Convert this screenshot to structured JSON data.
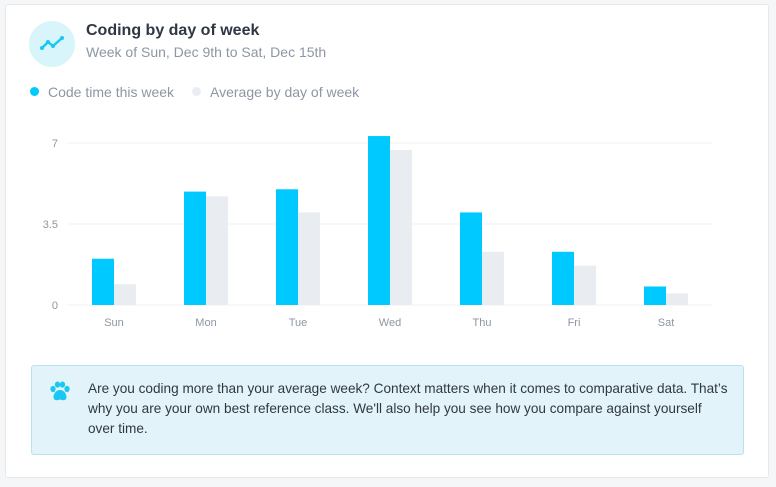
{
  "header": {
    "title": "Coding by day of week",
    "subtitle": "Week of Sun, Dec 9th to Sat, Dec 15th"
  },
  "legend": [
    {
      "label": "Code time this week",
      "color": "#00c9ff"
    },
    {
      "label": "Average by day of week",
      "color": "#e9edf2"
    }
  ],
  "chart_data": {
    "type": "bar",
    "categories": [
      "Sun",
      "Mon",
      "Tue",
      "Wed",
      "Thu",
      "Fri",
      "Sat"
    ],
    "series": [
      {
        "name": "Code time this week",
        "values": [
          2.0,
          4.9,
          5.0,
          7.3,
          4.0,
          2.3,
          0.8
        ],
        "color": "#00c9ff"
      },
      {
        "name": "Average by day of week",
        "values": [
          0.9,
          4.7,
          4.0,
          6.7,
          2.3,
          1.7,
          0.5
        ],
        "color": "#e9edf2"
      }
    ],
    "yticks": [
      0,
      3.5,
      7
    ],
    "ytick_labels": [
      "0",
      "3.5",
      "7"
    ],
    "ylim": [
      0,
      7
    ],
    "grid": true
  },
  "callout": {
    "icon": "paw-icon",
    "text": "Are you coding more than your average week? Context matters when it comes to comparative data. That’s why you are your own best reference class. We'll also help you see how you compare against yourself over time."
  },
  "colors": {
    "accent": "#00c9ff",
    "average": "#e9edf2",
    "icon_bg": "#d7f5fb",
    "callout_bg": "#e3f3fa"
  }
}
